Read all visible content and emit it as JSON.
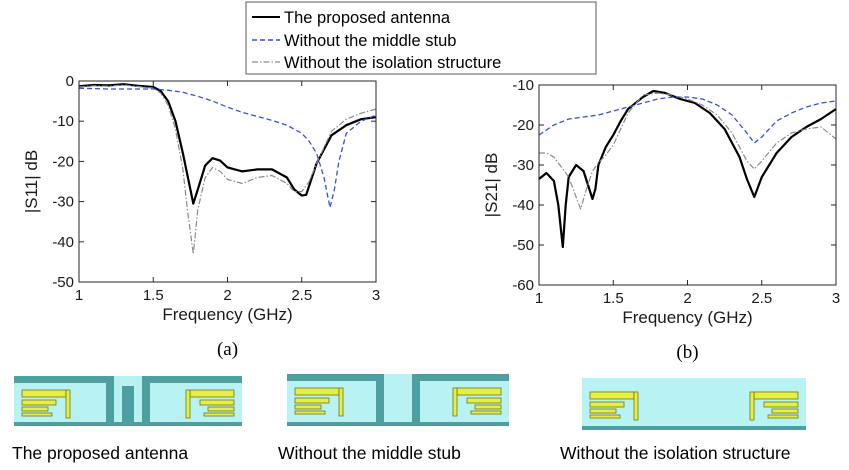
{
  "legend": {
    "entries": [
      {
        "label": "The proposed antenna",
        "color": "#000000",
        "style": "solid"
      },
      {
        "label": "Without the middle stub",
        "color": "#3a4fd6",
        "style": "dashed"
      },
      {
        "label": "Without the isolation structure",
        "color": "#8a8a8a",
        "style": "dashdot"
      }
    ]
  },
  "chart_data": [
    {
      "type": "line",
      "caption": "(a)",
      "xlabel": "Frequency (GHz)",
      "ylabel": "|S11| dB",
      "xlim": [
        1,
        3
      ],
      "ylim": [
        -50,
        0
      ],
      "xticks": [
        1,
        1.5,
        2,
        2.5,
        3
      ],
      "yticks": [
        0,
        -10,
        -20,
        -30,
        -40,
        -50
      ],
      "grid": false,
      "series": [
        {
          "name": "The proposed antenna",
          "color": "#000000",
          "x": [
            1.0,
            1.1,
            1.2,
            1.3,
            1.4,
            1.5,
            1.55,
            1.6,
            1.65,
            1.7,
            1.75,
            1.77,
            1.8,
            1.85,
            1.9,
            1.95,
            2.0,
            2.1,
            2.2,
            2.3,
            2.4,
            2.45,
            2.5,
            2.53,
            2.6,
            2.7,
            2.8,
            2.9,
            3.0
          ],
          "y": [
            -1.3,
            -1.0,
            -1.1,
            -0.8,
            -1.2,
            -1.5,
            -2.5,
            -5,
            -10,
            -18,
            -27,
            -30.5,
            -27,
            -21,
            -19.2,
            -19.8,
            -21.5,
            -22.5,
            -22,
            -22,
            -24,
            -27,
            -28.5,
            -28.3,
            -20.5,
            -13.5,
            -11,
            -9.5,
            -9
          ]
        },
        {
          "name": "Without the middle stub",
          "color": "#3a4fd6",
          "x": [
            1.0,
            1.2,
            1.4,
            1.5,
            1.6,
            1.7,
            1.8,
            1.9,
            2.0,
            2.1,
            2.2,
            2.3,
            2.4,
            2.5,
            2.55,
            2.6,
            2.65,
            2.69,
            2.72,
            2.75,
            2.8,
            2.9,
            3.0
          ],
          "y": [
            -1.8,
            -2.0,
            -2.0,
            -2.0,
            -2.3,
            -2.8,
            -3.8,
            -5.0,
            -6.5,
            -7.8,
            -8.8,
            -9.8,
            -11.0,
            -13.0,
            -15.0,
            -18.0,
            -24,
            -31.5,
            -27,
            -20,
            -13,
            -10,
            -8.5
          ]
        },
        {
          "name": "Without the isolation structure",
          "color": "#8a8a8a",
          "x": [
            1.0,
            1.1,
            1.2,
            1.3,
            1.4,
            1.5,
            1.55,
            1.6,
            1.65,
            1.7,
            1.73,
            1.77,
            1.8,
            1.85,
            1.9,
            1.95,
            2.0,
            2.1,
            2.2,
            2.3,
            2.4,
            2.45,
            2.5,
            2.55,
            2.6,
            2.7,
            2.8,
            2.9,
            3.0
          ],
          "y": [
            -1.5,
            -1.2,
            -1.3,
            -1.0,
            -1.4,
            -1.8,
            -3,
            -6,
            -12,
            -22,
            -32,
            -43,
            -32,
            -24,
            -21.5,
            -22.5,
            -24.5,
            -25.5,
            -24,
            -23.5,
            -25.5,
            -27.5,
            -27.5,
            -25,
            -20.5,
            -12.5,
            -9.5,
            -8,
            -7
          ]
        }
      ]
    },
    {
      "type": "line",
      "caption": "(b)",
      "xlabel": "Frequency (GHz)",
      "ylabel": "|S21| dB",
      "xlim": [
        1,
        3
      ],
      "ylim": [
        -60,
        -10
      ],
      "xticks": [
        1,
        1.5,
        2,
        2.5,
        3
      ],
      "yticks": [
        -10,
        -20,
        -30,
        -40,
        -50,
        -60
      ],
      "grid": false,
      "series": [
        {
          "name": "The proposed antenna",
          "color": "#000000",
          "x": [
            1.0,
            1.05,
            1.1,
            1.13,
            1.16,
            1.18,
            1.2,
            1.25,
            1.3,
            1.33,
            1.36,
            1.38,
            1.4,
            1.45,
            1.5,
            1.55,
            1.6,
            1.7,
            1.77,
            1.85,
            1.95,
            2.05,
            2.15,
            2.25,
            2.35,
            2.4,
            2.45,
            2.5,
            2.6,
            2.7,
            2.8,
            2.9,
            3.0
          ],
          "y": [
            -33.5,
            -32,
            -34,
            -40,
            -50.5,
            -40,
            -33,
            -30,
            -31.5,
            -35,
            -38.5,
            -36,
            -30,
            -25.5,
            -22.5,
            -19,
            -16,
            -13,
            -11.5,
            -12,
            -13.5,
            -14.5,
            -17,
            -21,
            -28,
            -33.5,
            -38,
            -33,
            -27,
            -23,
            -20.5,
            -18.5,
            -16
          ]
        },
        {
          "name": "Without the middle stub",
          "color": "#3a4fd6",
          "x": [
            1.0,
            1.1,
            1.2,
            1.3,
            1.4,
            1.5,
            1.6,
            1.7,
            1.8,
            1.9,
            2.0,
            2.1,
            2.2,
            2.3,
            2.4,
            2.45,
            2.5,
            2.6,
            2.7,
            2.8,
            2.9,
            3.0
          ],
          "y": [
            -22.5,
            -20,
            -18.5,
            -18,
            -17.5,
            -16.5,
            -15.5,
            -14.5,
            -13.5,
            -13,
            -13,
            -13.5,
            -15,
            -17.5,
            -22,
            -24.5,
            -23,
            -19,
            -17,
            -15.5,
            -14.5,
            -14
          ]
        },
        {
          "name": "Without the isolation structure",
          "color": "#8a8a8a",
          "x": [
            1.0,
            1.05,
            1.1,
            1.15,
            1.2,
            1.25,
            1.28,
            1.32,
            1.36,
            1.4,
            1.45,
            1.5,
            1.55,
            1.6,
            1.7,
            1.8,
            1.9,
            2.0,
            2.1,
            2.2,
            2.3,
            2.4,
            2.45,
            2.5,
            2.6,
            2.7,
            2.8,
            2.9,
            3.0
          ],
          "y": [
            -27,
            -27,
            -28,
            -30.5,
            -33,
            -38,
            -41,
            -36,
            -31.5,
            -29.5,
            -27.5,
            -25,
            -21,
            -17,
            -12.5,
            -12,
            -12.5,
            -13.5,
            -15,
            -17.5,
            -22,
            -29,
            -31,
            -29,
            -24.5,
            -22,
            -21,
            -20.5,
            -23.5
          ]
        }
      ]
    }
  ],
  "structures": [
    {
      "caption": "The proposed antenna"
    },
    {
      "caption": "Without the middle stub"
    },
    {
      "caption": "Without the isolation structure"
    }
  ],
  "colors": {
    "substrate": "#b8f2f3",
    "ground": "#4f9fa0",
    "patch_fill": "#e6f042",
    "patch_edge": "#6f7322"
  }
}
